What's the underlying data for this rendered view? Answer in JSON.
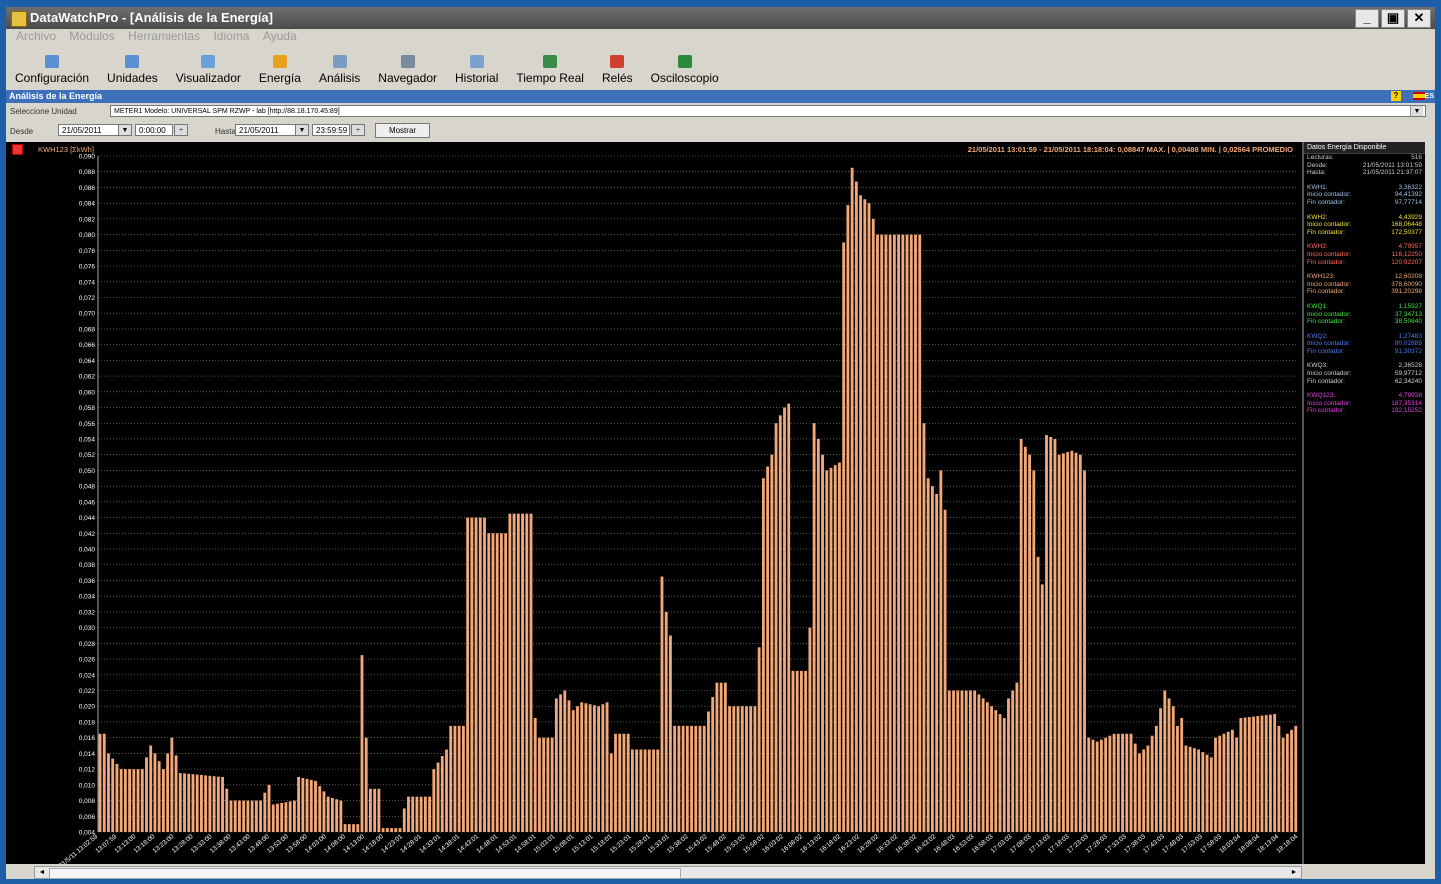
{
  "window": {
    "title": "DataWatchPro - [Análisis de la Energía]",
    "btn_min": "_",
    "btn_restore": "▣",
    "btn_close": "✕"
  },
  "menu": [
    "Archivo",
    "Módulos",
    "Herramientas",
    "Idioma",
    "Ayuda"
  ],
  "toolbar": [
    {
      "label": "Configuración",
      "icon": "gear-icon",
      "color": "#5b8fd0"
    },
    {
      "label": "Unidades",
      "icon": "unit-icon",
      "color": "#5b8fd0"
    },
    {
      "label": "Visualizador",
      "icon": "viewer-icon",
      "color": "#6aa0d8"
    },
    {
      "label": "Energía",
      "icon": "energy-icon",
      "color": "#e8a020"
    },
    {
      "label": "Análisis",
      "icon": "analysis-icon",
      "color": "#7a9cc0"
    },
    {
      "label": "Navegador",
      "icon": "navigator-icon",
      "color": "#7a8aa0"
    },
    {
      "label": "Historial",
      "icon": "history-icon",
      "color": "#7aa0d0"
    },
    {
      "label": "Tiempo Real",
      "icon": "realtime-icon",
      "color": "#3a8a4a"
    },
    {
      "label": "Relés",
      "icon": "relay-icon",
      "color": "#d04030"
    },
    {
      "label": "Osciloscopio",
      "icon": "oscilloscope-icon",
      "color": "#2a8a3a"
    }
  ],
  "section": {
    "title": "Análisis de la Energía",
    "help": "?",
    "lang": "ES"
  },
  "unit": {
    "label": "Seleccione Unidad",
    "value": "METER1  Modelo: UNIVERSAL SPM RZWP - lab [http://88.18.170.45:89]",
    "arrow": "▼"
  },
  "range": {
    "desde_label": "Desde",
    "desde_date": "21/05/2011",
    "desde_time": "0:00:00",
    "hasta_label": "Hasta",
    "hasta_date": "21/05/2011",
    "hasta_time": "23:59:59",
    "button": "Mostrar",
    "arrow": "▼",
    "spin": "÷"
  },
  "chart_header": {
    "title": "KWH123 [ΣkWh]",
    "summary": "21/05/2011 13:01:59 - 21/05/2011 18:18:04:  0,08847 MAX.   |   0,00488 MIN.   |   0,02664 PROMEDIO"
  },
  "chart_data": {
    "type": "bar",
    "title": "KWH123 [ΣkWh]",
    "ylim": [
      0.004,
      0.09
    ],
    "y_ticks": [
      "0,004",
      "0,006",
      "0,008",
      "0,010",
      "0,012",
      "0,014",
      "0,016",
      "0,018",
      "0,020",
      "0,022",
      "0,024",
      "0,026",
      "0,028",
      "0,030",
      "0,032",
      "0,034",
      "0,036",
      "0,038",
      "0,040",
      "0,042",
      "0,044",
      "0,046",
      "0,048",
      "0,050",
      "0,052",
      "0,054",
      "0,056",
      "0,058",
      "0,060",
      "0,062",
      "0,064",
      "0,066",
      "0,068",
      "0,070",
      "0,072",
      "0,074",
      "0,076",
      "0,078",
      "0,080",
      "0,082",
      "0,084",
      "0,086",
      "0,088",
      "0,090"
    ],
    "x_tick_labels": [
      "21/5/11 13:02:59",
      "13:07:59",
      "13:13:00",
      "13:18:00",
      "13:23:00",
      "13:28:00",
      "13:33:00",
      "13:38:00",
      "13:43:00",
      "13:48:00",
      "13:53:00",
      "13:58:00",
      "14:03:00",
      "14:08:00",
      "14:13:00",
      "14:18:00",
      "14:23:01",
      "14:28:01",
      "14:33:01",
      "14:38:01",
      "14:43:01",
      "14:48:01",
      "14:53:01",
      "14:58:01",
      "15:03:01",
      "15:08:01",
      "15:13:01",
      "15:18:01",
      "15:23:01",
      "15:28:01",
      "15:33:01",
      "15:38:02",
      "15:43:02",
      "15:48:02",
      "15:53:02",
      "15:58:02",
      "16:03:02",
      "16:08:02",
      "16:13:02",
      "16:18:02",
      "16:23:02",
      "16:28:02",
      "16:33:02",
      "16:38:02",
      "16:43:02",
      "16:48:03",
      "16:53:03",
      "16:58:03",
      "17:03:03",
      "17:08:03",
      "17:13:03",
      "17:18:03",
      "17:23:03",
      "17:28:03",
      "17:33:03",
      "17:38:03",
      "17:43:03",
      "17:48:03",
      "17:53:03",
      "17:58:03",
      "18:03:04",
      "18:08:04",
      "18:13:04",
      "18:18:04"
    ],
    "bar_color": "#f2a878",
    "grid": true,
    "profile": [
      [
        0,
        0.0165
      ],
      [
        1,
        0.0165
      ],
      [
        2,
        0.014
      ],
      [
        5,
        0.012
      ],
      [
        10,
        0.012
      ],
      [
        12,
        0.015
      ],
      [
        15,
        0.012
      ],
      [
        17,
        0.016
      ],
      [
        19,
        0.0115
      ],
      [
        29,
        0.011
      ],
      [
        31,
        0.008
      ],
      [
        38,
        0.008
      ],
      [
        40,
        0.01
      ],
      [
        41,
        0.0075
      ],
      [
        46,
        0.008
      ],
      [
        47,
        0.011
      ],
      [
        51,
        0.0105
      ],
      [
        54,
        0.0085
      ],
      [
        57,
        0.008
      ],
      [
        58,
        0.005
      ],
      [
        61,
        0.005
      ],
      [
        62,
        0.0265
      ],
      [
        63,
        0.016
      ],
      [
        64,
        0.0095
      ],
      [
        66,
        0.0095
      ],
      [
        67,
        0.0045
      ],
      [
        71,
        0.0045
      ],
      [
        72,
        0.007
      ],
      [
        73,
        0.0085
      ],
      [
        78,
        0.0085
      ],
      [
        79,
        0.012
      ],
      [
        82,
        0.0145
      ],
      [
        83,
        0.0175
      ],
      [
        86,
        0.0175
      ],
      [
        87,
        0.044
      ],
      [
        91,
        0.044
      ],
      [
        92,
        0.042
      ],
      [
        96,
        0.042
      ],
      [
        97,
        0.0445
      ],
      [
        102,
        0.0445
      ],
      [
        103,
        0.0185
      ],
      [
        104,
        0.016
      ],
      [
        107,
        0.016
      ],
      [
        108,
        0.021
      ],
      [
        110,
        0.022
      ],
      [
        112,
        0.0195
      ],
      [
        114,
        0.0205
      ],
      [
        118,
        0.02
      ],
      [
        120,
        0.0205
      ],
      [
        121,
        0.014
      ],
      [
        122,
        0.0165
      ],
      [
        125,
        0.0165
      ],
      [
        126,
        0.0145
      ],
      [
        130,
        0.0145
      ],
      [
        132,
        0.0145
      ],
      [
        133,
        0.0365
      ],
      [
        134,
        0.032
      ],
      [
        135,
        0.029
      ],
      [
        136,
        0.0175
      ],
      [
        143,
        0.0175
      ],
      [
        146,
        0.023
      ],
      [
        148,
        0.023
      ],
      [
        149,
        0.02
      ],
      [
        155,
        0.02
      ],
      [
        156,
        0.0275
      ],
      [
        157,
        0.049
      ],
      [
        159,
        0.052
      ],
      [
        160,
        0.056
      ],
      [
        162,
        0.058
      ],
      [
        163,
        0.0585
      ],
      [
        164,
        0.0245
      ],
      [
        167,
        0.0245
      ],
      [
        168,
        0.03
      ],
      [
        169,
        0.056
      ],
      [
        170,
        0.054
      ],
      [
        172,
        0.05
      ],
      [
        175,
        0.051
      ],
      [
        176,
        0.079
      ],
      [
        178,
        0.0885
      ],
      [
        180,
        0.085
      ],
      [
        182,
        0.084
      ],
      [
        183,
        0.082
      ],
      [
        184,
        0.08
      ],
      [
        192,
        0.08
      ],
      [
        194,
        0.08
      ],
      [
        195,
        0.056
      ],
      [
        196,
        0.049
      ],
      [
        198,
        0.047
      ],
      [
        199,
        0.05
      ],
      [
        200,
        0.045
      ],
      [
        201,
        0.022
      ],
      [
        207,
        0.022
      ],
      [
        211,
        0.02
      ],
      [
        214,
        0.0185
      ],
      [
        215,
        0.021
      ],
      [
        217,
        0.023
      ],
      [
        218,
        0.054
      ],
      [
        220,
        0.052
      ],
      [
        221,
        0.05
      ],
      [
        222,
        0.039
      ],
      [
        223,
        0.0355
      ],
      [
        224,
        0.0545
      ],
      [
        226,
        0.054
      ],
      [
        227,
        0.052
      ],
      [
        230,
        0.0525
      ],
      [
        232,
        0.052
      ],
      [
        233,
        0.05
      ],
      [
        234,
        0.016
      ],
      [
        236,
        0.0155
      ],
      [
        240,
        0.0165
      ],
      [
        244,
        0.0165
      ],
      [
        246,
        0.014
      ],
      [
        248,
        0.015
      ],
      [
        250,
        0.0175
      ],
      [
        252,
        0.022
      ],
      [
        254,
        0.02
      ],
      [
        255,
        0.0175
      ],
      [
        256,
        0.0185
      ],
      [
        257,
        0.015
      ],
      [
        260,
        0.0145
      ],
      [
        263,
        0.0135
      ],
      [
        264,
        0.016
      ],
      [
        268,
        0.017
      ],
      [
        269,
        0.016
      ],
      [
        270,
        0.0185
      ],
      [
        278,
        0.019
      ],
      [
        280,
        0.016
      ],
      [
        282,
        0.017
      ],
      [
        283,
        0.0175
      ]
    ]
  },
  "side_panel": {
    "title": "Datos Energía Disponible",
    "lecturas_label": "Lecturas:",
    "lecturas": "516",
    "desde_label": "Desde:",
    "desde": "21/05/2011 13:01:59",
    "hasta_label": "Hasta:",
    "hasta": "21/05/2011 21:37:07",
    "inicio_label": "Inicio contador:",
    "fin_label": "Fin contador:",
    "groups": [
      {
        "name": "KWH1:",
        "total": "3,36322",
        "inicio": "94,41392",
        "fin": "97,77714",
        "color": "#9ec0e8"
      },
      {
        "name": "KWH2:",
        "total": "4,43929",
        "inicio": "168,06448",
        "fin": "172,50377",
        "color": "#f0e040"
      },
      {
        "name": "KWH3:",
        "total": "4,79957",
        "inicio": "116,12250",
        "fin": "120,92207",
        "color": "#ff6a5a"
      },
      {
        "name": "KWH123:",
        "total": "12,60208",
        "inicio": "378,60090",
        "fin": "391,20298",
        "color": "#f2a878"
      },
      {
        "name": "KWQ1:",
        "total": "1,15927",
        "inicio": "37,34713",
        "fin": "38,50640",
        "color": "#40e040"
      },
      {
        "name": "KWQ2:",
        "total": "1,27483",
        "inicio": "90,02889",
        "fin": "91,30372",
        "color": "#4a7af0"
      },
      {
        "name": "KWQ3:",
        "total": "2,36528",
        "inicio": "59,97712",
        "fin": "62,34240",
        "color": "#d0d0d0"
      },
      {
        "name": "KWQ123:",
        "total": "4,79938",
        "inicio": "187,35314",
        "fin": "192,15252",
        "color": "#e040e0"
      }
    ]
  },
  "scroll": {
    "left": "◄",
    "right": "►"
  }
}
